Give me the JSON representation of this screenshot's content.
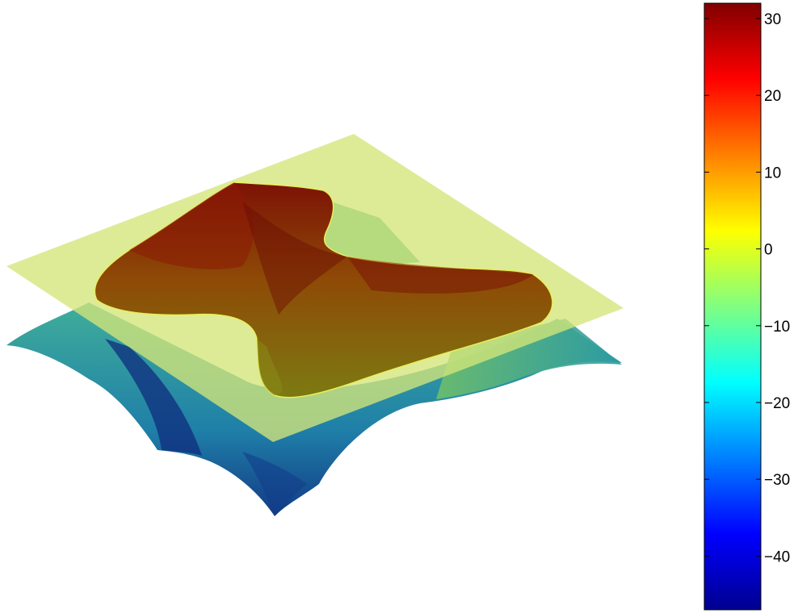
{
  "chart_data": {
    "type": "surface3d",
    "title": "",
    "xlabel": "",
    "ylabel": "",
    "zlabel": "",
    "axes_visible": false,
    "grid": false,
    "colormap": "jet",
    "surface": {
      "z_min": -47,
      "z_max": 32,
      "shape": "saddle-like surface with two high ridges near the center, low corners"
    },
    "plane": {
      "z": 0,
      "color": "#d4e67a",
      "opacity": 0.75
    },
    "colorbar": {
      "placement": "right",
      "range": [
        -47,
        32
      ],
      "ticks": [
        30,
        20,
        10,
        0,
        -10,
        -20,
        -30,
        -40
      ],
      "tick_labels": [
        "30",
        "20",
        "10",
        "0",
        "−10",
        "−20",
        "−30",
        "−40"
      ]
    }
  }
}
